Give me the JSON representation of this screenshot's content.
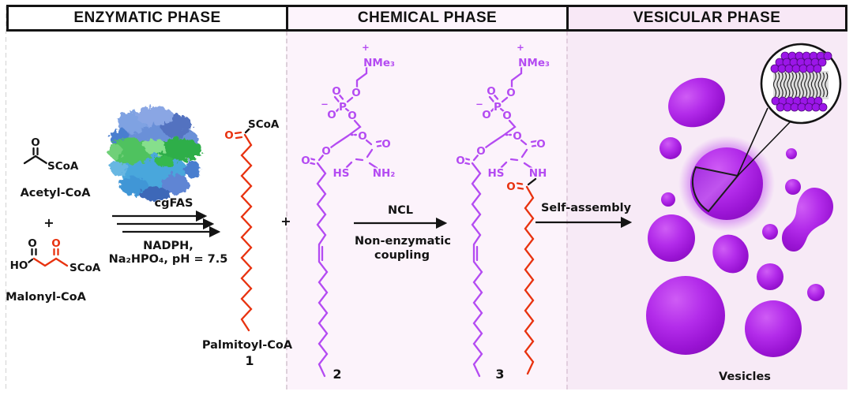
{
  "palette": {
    "structure_purple": "#b44bf2",
    "structure_red": "#e8320f",
    "structure_black": "#141414",
    "vesicle_purple": "#a81ddd",
    "panel_chemical_bg": "#fcf3fb",
    "panel_vesicular_bg": "#f7eaf6"
  },
  "atoms": {
    "o": "O",
    "p": "P",
    "ho": "HO",
    "hs": "HS",
    "scoa": "SCoA",
    "nme3": "NMe₃",
    "nh2": "NH₂",
    "nh": "NH",
    "plus": "+",
    "minus": "−"
  },
  "enzymatic": {
    "title": "ENZYMATIC PHASE",
    "acetyl_label": "Acetyl-CoA",
    "plus": "+",
    "malonyl_label": "Malonyl-CoA",
    "enzyme": "cgFAS",
    "cond1": "NADPH,",
    "cond2": "Na₂HPO₄, pH = 7.5",
    "product_label": "Palmitoyl-CoA",
    "product_number": "1"
  },
  "chemical": {
    "title": "CHEMICAL PHASE",
    "plus": "+",
    "lipid2_number": "2",
    "lipid3_number": "3",
    "rxn_top": "NCL",
    "rxn_bottom1": "Non-enzymatic",
    "rxn_bottom2": "coupling"
  },
  "vesicular": {
    "title": "VESICULAR PHASE",
    "arrow_label": "Self-assembly",
    "caption": "Vesicles"
  }
}
